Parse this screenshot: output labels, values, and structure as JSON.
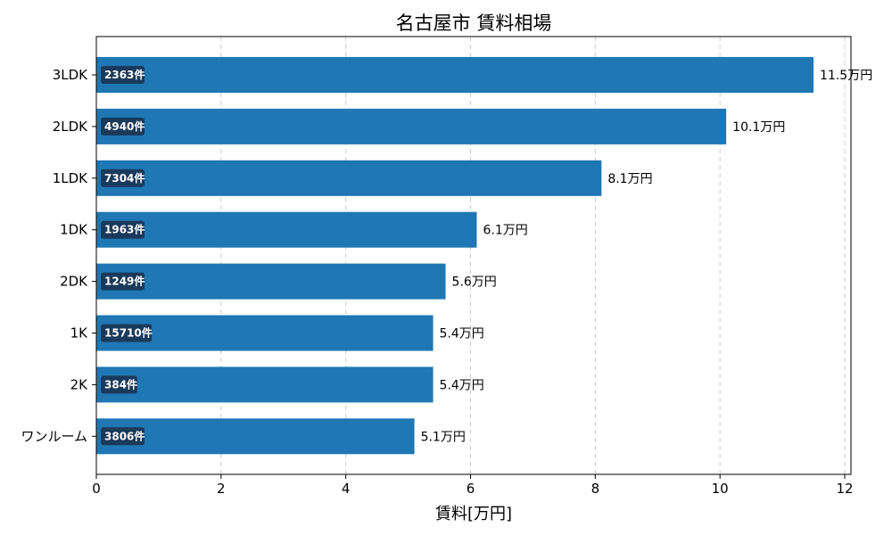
{
  "chart_data": {
    "type": "bar",
    "orientation": "horizontal",
    "title": "名古屋市 賃料相場",
    "xlabel": "賃料[万円]",
    "ylabel": "",
    "xlim": [
      0,
      12.1
    ],
    "x_ticks": [
      "0",
      "2",
      "4",
      "6",
      "8",
      "10",
      "12"
    ],
    "grid": "x dashed",
    "categories": [
      "3LDK",
      "2LDK",
      "1LDK",
      "1DK",
      "2DK",
      "1K",
      "2K",
      "ワンルーム"
    ],
    "values": [
      11.5,
      10.1,
      8.1,
      6.1,
      5.6,
      5.4,
      5.4,
      5.1
    ],
    "value_labels": [
      "11.5万円",
      "10.1万円",
      "8.1万円",
      "6.1万円",
      "5.6万円",
      "5.4万円",
      "5.4万円",
      "5.1万円"
    ],
    "count_labels": [
      "2363件",
      "4940件",
      "7304件",
      "1963件",
      "1249件",
      "15710件",
      "384件",
      "3806件"
    ],
    "bar_color": "#1f77b4",
    "count_badge_color": "#1a3a5c"
  }
}
